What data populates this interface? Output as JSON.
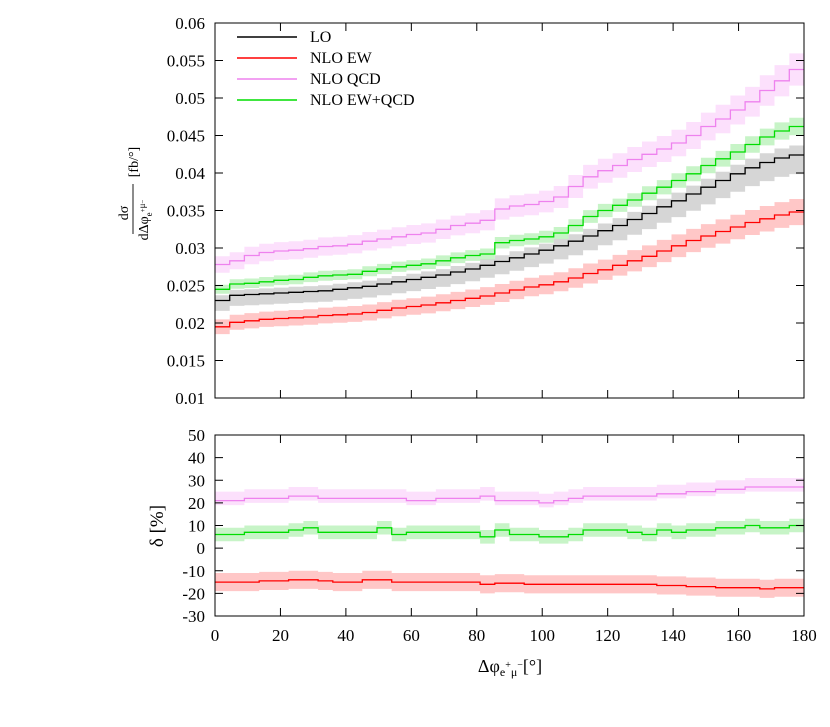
{
  "chart_data": [
    {
      "id": "main",
      "type": "step",
      "title": "",
      "xlabel": "Δφ",
      "xlabel_sub": "e",
      "xlabel_sup1": "+",
      "xlabel_mu": "μ",
      "xlabel_sup2": "−",
      "xlabel_unit": "[°]",
      "ylabel_num": "dσ",
      "ylabel_den": "dΔφ",
      "ylabel_unit": "[fb/°]",
      "xlim": [
        0,
        180
      ],
      "ylim": [
        0.01,
        0.06
      ],
      "x_ticks": [
        0,
        20,
        40,
        60,
        80,
        100,
        120,
        140,
        160,
        180
      ],
      "y_ticks": [
        0.01,
        0.015,
        0.02,
        0.025,
        0.03,
        0.035,
        0.04,
        0.045,
        0.05,
        0.055,
        0.06
      ],
      "y_tick_labels": [
        "0.01",
        "0.015",
        "0.02",
        "0.025",
        "0.03",
        "0.035",
        "0.04",
        "0.045",
        "0.05",
        "0.055",
        "0.06"
      ],
      "legend_position": "top-left",
      "bins_start": 0,
      "bin_width": 4.5,
      "series": [
        {
          "name": "LO",
          "color": "#000000",
          "band_color": "#c8c8c8",
          "values": [
            0.023,
            0.0237,
            0.0238,
            0.0239,
            0.024,
            0.0241,
            0.0242,
            0.0243,
            0.0245,
            0.0247,
            0.0249,
            0.0252,
            0.0255,
            0.0258,
            0.0261,
            0.0264,
            0.0268,
            0.0272,
            0.0277,
            0.0282,
            0.0287,
            0.0292,
            0.0297,
            0.0303,
            0.0309,
            0.0316,
            0.0323,
            0.033,
            0.0338,
            0.0346,
            0.0355,
            0.0363,
            0.0372,
            0.0381,
            0.039,
            0.0399,
            0.0407,
            0.0414,
            0.042,
            0.0424
          ],
          "rel_band": [
            0.03,
            0.06
          ]
        },
        {
          "name": "NLO EW",
          "color": "#ff0000",
          "band_color": "#ffb4b4",
          "values": [
            0.0195,
            0.0201,
            0.0203,
            0.0205,
            0.0206,
            0.0207,
            0.0208,
            0.021,
            0.0211,
            0.0212,
            0.0214,
            0.0217,
            0.022,
            0.0222,
            0.0224,
            0.0227,
            0.023,
            0.0233,
            0.0236,
            0.024,
            0.0244,
            0.0248,
            0.0251,
            0.0255,
            0.026,
            0.0266,
            0.0271,
            0.0277,
            0.0283,
            0.0289,
            0.0296,
            0.0303,
            0.031,
            0.0316,
            0.0322,
            0.0328,
            0.0334,
            0.0339,
            0.0344,
            0.0348
          ],
          "rel_band": [
            0.05,
            0.05
          ]
        },
        {
          "name": "NLO QCD",
          "color": "#ee82ee",
          "band_color": "#fbd6fb",
          "values": [
            0.0278,
            0.0283,
            0.029,
            0.0294,
            0.0296,
            0.0297,
            0.0299,
            0.0302,
            0.0303,
            0.0305,
            0.0309,
            0.0312,
            0.0315,
            0.0318,
            0.032,
            0.0325,
            0.033,
            0.0333,
            0.0337,
            0.0352,
            0.0356,
            0.0358,
            0.0362,
            0.0368,
            0.0382,
            0.0395,
            0.0403,
            0.041,
            0.0418,
            0.0425,
            0.0432,
            0.044,
            0.045,
            0.0462,
            0.0472,
            0.0484,
            0.0495,
            0.051,
            0.0523,
            0.0538
          ],
          "rel_band": [
            0.04,
            0.04
          ]
        },
        {
          "name": "NLO EW+QCD",
          "color": "#00dd00",
          "band_color": "#b4f0b4",
          "values": [
            0.0245,
            0.0252,
            0.0253,
            0.0255,
            0.0257,
            0.0258,
            0.0261,
            0.0263,
            0.0264,
            0.0265,
            0.0269,
            0.0272,
            0.0275,
            0.0277,
            0.0279,
            0.0283,
            0.0287,
            0.029,
            0.0292,
            0.0307,
            0.031,
            0.0312,
            0.0315,
            0.032,
            0.033,
            0.0342,
            0.035,
            0.0357,
            0.0364,
            0.0373,
            0.0381,
            0.039,
            0.0399,
            0.041,
            0.0419,
            0.0428,
            0.0438,
            0.0448,
            0.0456,
            0.0462
          ],
          "rel_band": [
            0.025,
            0.025
          ]
        }
      ]
    },
    {
      "id": "ratio",
      "type": "step",
      "xlabel": "Δφ",
      "ylabel": "δ [%]",
      "xlim": [
        0,
        180
      ],
      "ylim": [
        -30,
        50
      ],
      "x_ticks": [
        0,
        20,
        40,
        60,
        80,
        100,
        120,
        140,
        160,
        180
      ],
      "y_ticks": [
        -30,
        -20,
        -10,
        0,
        10,
        20,
        30,
        40,
        50
      ],
      "y_tick_labels": [
        "-30",
        "-20",
        "-10",
        "0",
        "10",
        "20",
        "30",
        "40",
        "50"
      ],
      "bins_start": 0,
      "bin_width": 4.5,
      "series": [
        {
          "name": "NLO QCD",
          "color": "#ee82ee",
          "band_color": "#fbd6fb",
          "values": [
            21,
            21,
            22,
            22,
            22,
            23,
            23,
            22,
            22,
            22,
            22,
            22,
            22,
            21,
            21,
            22,
            22,
            22,
            23,
            21,
            21,
            21,
            20,
            21,
            22,
            23,
            23,
            23,
            23,
            23,
            24,
            24,
            25,
            25,
            26,
            26,
            27,
            27,
            27,
            27
          ],
          "band_half": [
            2,
            4
          ]
        },
        {
          "name": "NLO EW+QCD",
          "color": "#00dd00",
          "band_color": "#b4f0b4",
          "values": [
            6,
            6,
            7,
            7,
            7,
            8,
            9,
            7,
            7,
            7,
            7,
            9,
            6,
            7,
            7,
            7,
            7,
            7,
            5,
            8,
            6,
            6,
            5,
            5,
            6,
            8,
            8,
            8,
            7,
            6,
            8,
            7,
            8,
            8,
            9,
            9,
            10,
            9,
            9,
            10
          ],
          "band_half": [
            3,
            3
          ]
        },
        {
          "name": "NLO EW",
          "color": "#ff0000",
          "band_color": "#ffb4b4",
          "values": [
            -15,
            -15,
            -15,
            -14.5,
            -14.5,
            -14,
            -14,
            -14.5,
            -15,
            -15,
            -14,
            -14,
            -15,
            -15,
            -15,
            -15,
            -15,
            -15,
            -16,
            -15.5,
            -15.5,
            -16,
            -16,
            -16,
            -16,
            -16,
            -16,
            -16,
            -16,
            -16,
            -16.5,
            -16.5,
            -17,
            -17,
            -17.5,
            -17.5,
            -17.5,
            -18,
            -17.5,
            -17.5
          ],
          "band_half": [
            4,
            4
          ]
        }
      ]
    }
  ]
}
